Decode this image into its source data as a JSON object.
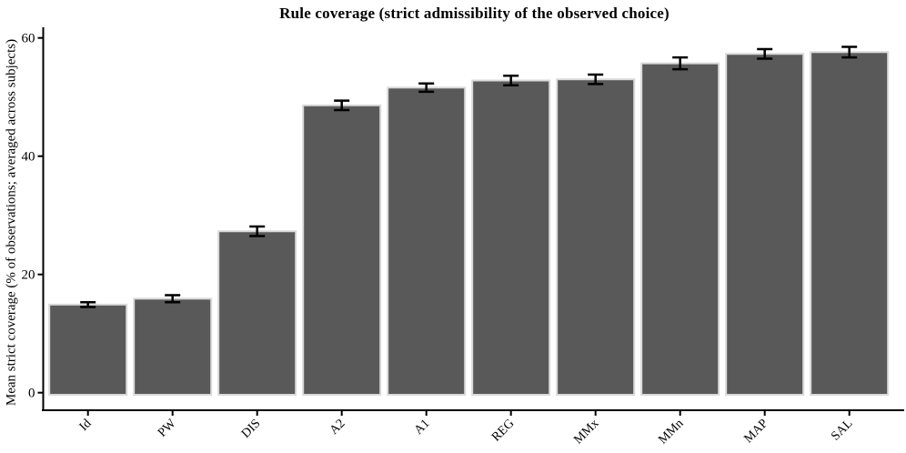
{
  "figure": {
    "background": "#ffffff"
  },
  "chart_data": {
    "type": "bar",
    "title": "Rule coverage (strict admissibility of the observed choice)",
    "xlabel": "",
    "ylabel": "Mean strict coverage (% of observations; averaged across subjects)",
    "categories": [
      "Id",
      "PW",
      "DIS",
      "A2",
      "A1",
      "REG",
      "MMx",
      "MMn",
      "MAP",
      "SAL"
    ],
    "values": [
      14.9,
      15.9,
      27.3,
      48.6,
      51.6,
      52.8,
      53.0,
      55.7,
      57.3,
      57.6
    ],
    "error_bars": [
      0.4,
      0.6,
      0.8,
      0.8,
      0.7,
      0.8,
      0.8,
      1.0,
      0.8,
      0.9
    ],
    "yticks": [
      0,
      20,
      40,
      60
    ],
    "ylim": [
      0,
      62
    ],
    "grid": false,
    "legend": "none",
    "x_tick_label_rotation_deg": 45,
    "bar_fill_color": "#595959",
    "bar_border_color": "#d9d9d9",
    "error_bar_color": "#000000",
    "axis_color": "#000000",
    "tick_label_color": "#000000"
  }
}
